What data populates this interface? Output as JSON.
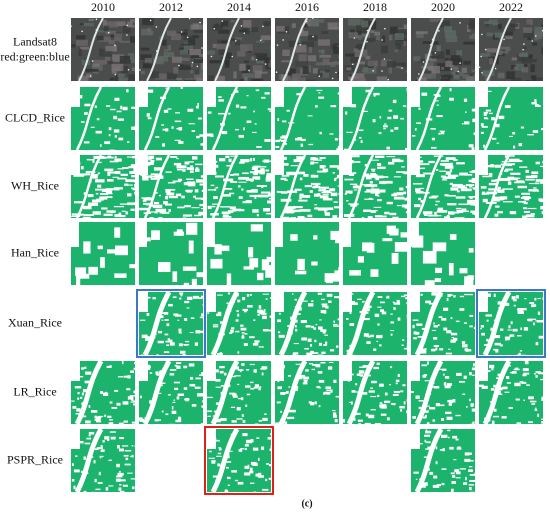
{
  "figure": {
    "caption": "(c)",
    "years": [
      "2010",
      "2012",
      "2014",
      "2016",
      "2018",
      "2020",
      "2022"
    ],
    "rows": [
      {
        "label": "Landsat8",
        "sublabel": "red:green:blue",
        "style": "satellite",
        "cells": [
          true,
          true,
          true,
          true,
          true,
          true,
          true
        ]
      },
      {
        "label": "CLCD_Rice",
        "style": "rice",
        "cells": [
          true,
          true,
          true,
          true,
          true,
          true,
          true
        ]
      },
      {
        "label": "WH_Rice",
        "style": "rice-sparse",
        "cells": [
          true,
          true,
          true,
          true,
          true,
          true,
          true
        ]
      },
      {
        "label": "Han_Rice",
        "style": "rice-blocky",
        "cells": [
          true,
          true,
          true,
          true,
          true,
          true,
          false
        ]
      },
      {
        "label": "Xuan_Rice",
        "style": "rice-dense",
        "cells": [
          false,
          "#3c78c8",
          true,
          true,
          true,
          true,
          "#3c78c8"
        ]
      },
      {
        "label": "LR_Rice",
        "style": "rice-dense",
        "cells": [
          true,
          true,
          true,
          true,
          true,
          true,
          true
        ]
      },
      {
        "label": "PSPR_Rice",
        "style": "rice-dense",
        "cells": [
          true,
          false,
          "#e0201b",
          false,
          false,
          true,
          false
        ]
      }
    ]
  }
}
